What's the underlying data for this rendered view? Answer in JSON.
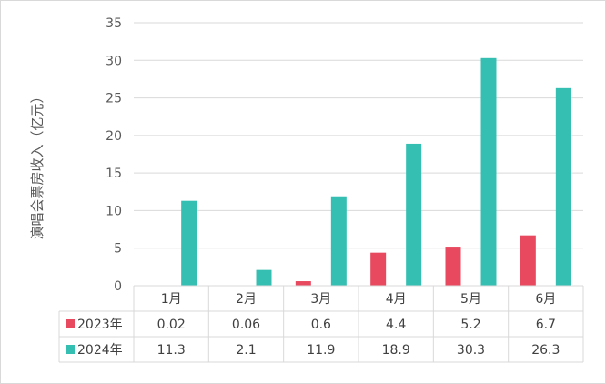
{
  "chart_data": {
    "type": "bar",
    "categories": [
      "1月",
      "2月",
      "3月",
      "4月",
      "5月",
      "6月"
    ],
    "series": [
      {
        "name": "2023年",
        "values": [
          0.02,
          0.06,
          0.6,
          4.4,
          5.2,
          6.7
        ],
        "color": "#e8495f"
      },
      {
        "name": "2024年",
        "values": [
          11.3,
          2.1,
          11.9,
          18.9,
          30.3,
          26.3
        ],
        "color": "#35bfb2"
      }
    ],
    "ylabel": "演唱会票房收入（亿元）",
    "ylim": [
      0,
      35
    ],
    "yticks": [
      0,
      5,
      10,
      15,
      20,
      25,
      30,
      35
    ],
    "data_table": true,
    "grid": true
  }
}
